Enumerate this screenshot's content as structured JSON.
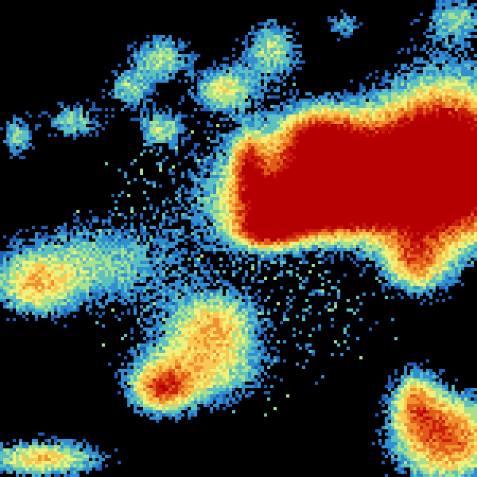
{
  "image": {
    "kind": "weather radar reflectivity sweep",
    "background_color": "#000000",
    "colormap": [
      "#1f5fb4",
      "#2f8fd0",
      "#5cc0c0",
      "#a8e08c",
      "#eef07a",
      "#f8c850",
      "#f09030",
      "#e05a18",
      "#c81e0a",
      "#b40000"
    ]
  }
}
